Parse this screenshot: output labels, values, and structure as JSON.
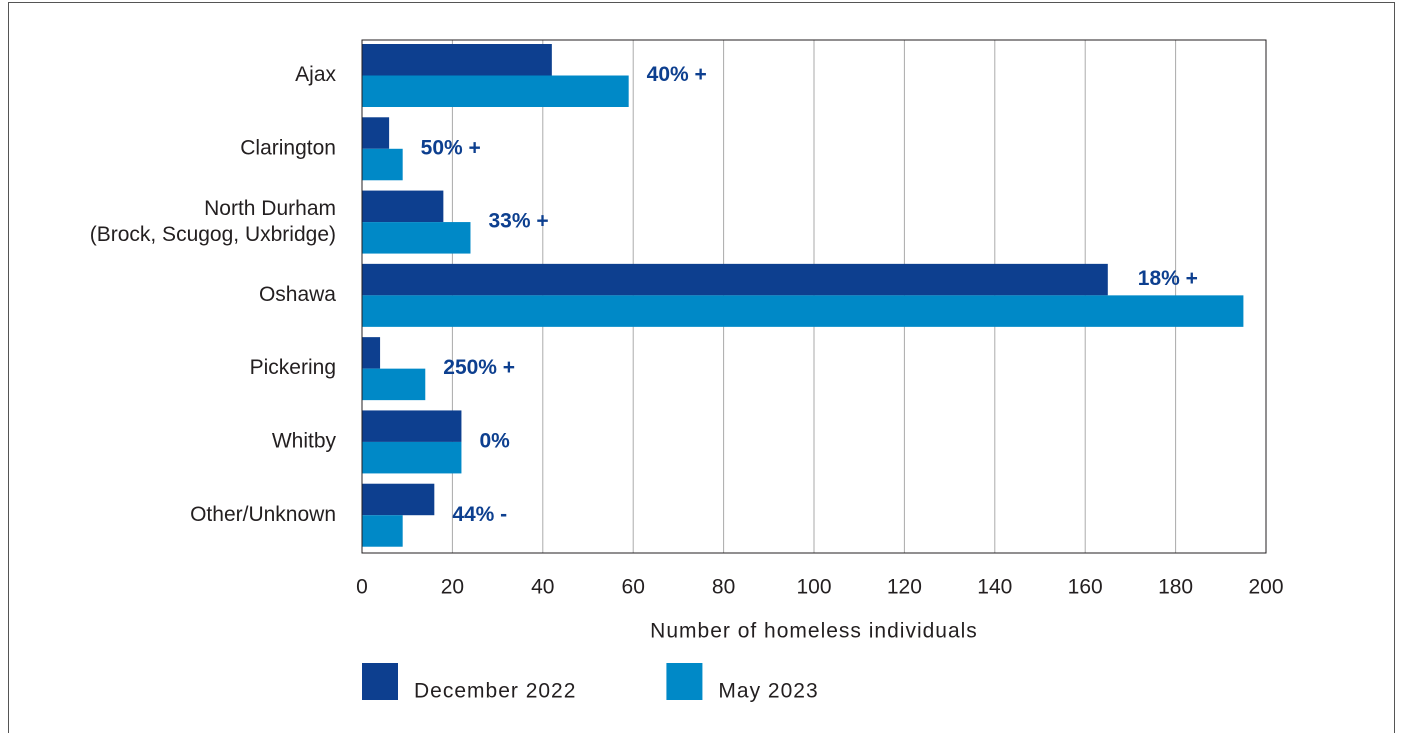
{
  "chart_data": {
    "type": "barh",
    "categories": [
      "Ajax",
      "Clarington",
      "North Durham\n(Brock, Scugog, Uxbridge)",
      "Oshawa",
      "Pickering",
      "Whitby",
      "Other/Unknown"
    ],
    "series": [
      {
        "name": "December 2022",
        "color": "#0d3f8f",
        "values": [
          42,
          6,
          18,
          165,
          4,
          22,
          16
        ]
      },
      {
        "name": "May 2023",
        "color": "#0089c7",
        "values": [
          59,
          9,
          24,
          195,
          14,
          22,
          9
        ]
      }
    ],
    "annotations": [
      "40% +",
      "50% +",
      "33% +",
      "18% +",
      "250% +",
      "0%",
      "44% -"
    ],
    "annotation_color": "#0d3f8f",
    "xlabel": "Number of homeless individuals",
    "xlim": [
      0,
      200
    ],
    "xticks": [
      0,
      20,
      40,
      60,
      80,
      100,
      120,
      140,
      160,
      180,
      200
    ],
    "grid": true,
    "legend": "bottom"
  }
}
